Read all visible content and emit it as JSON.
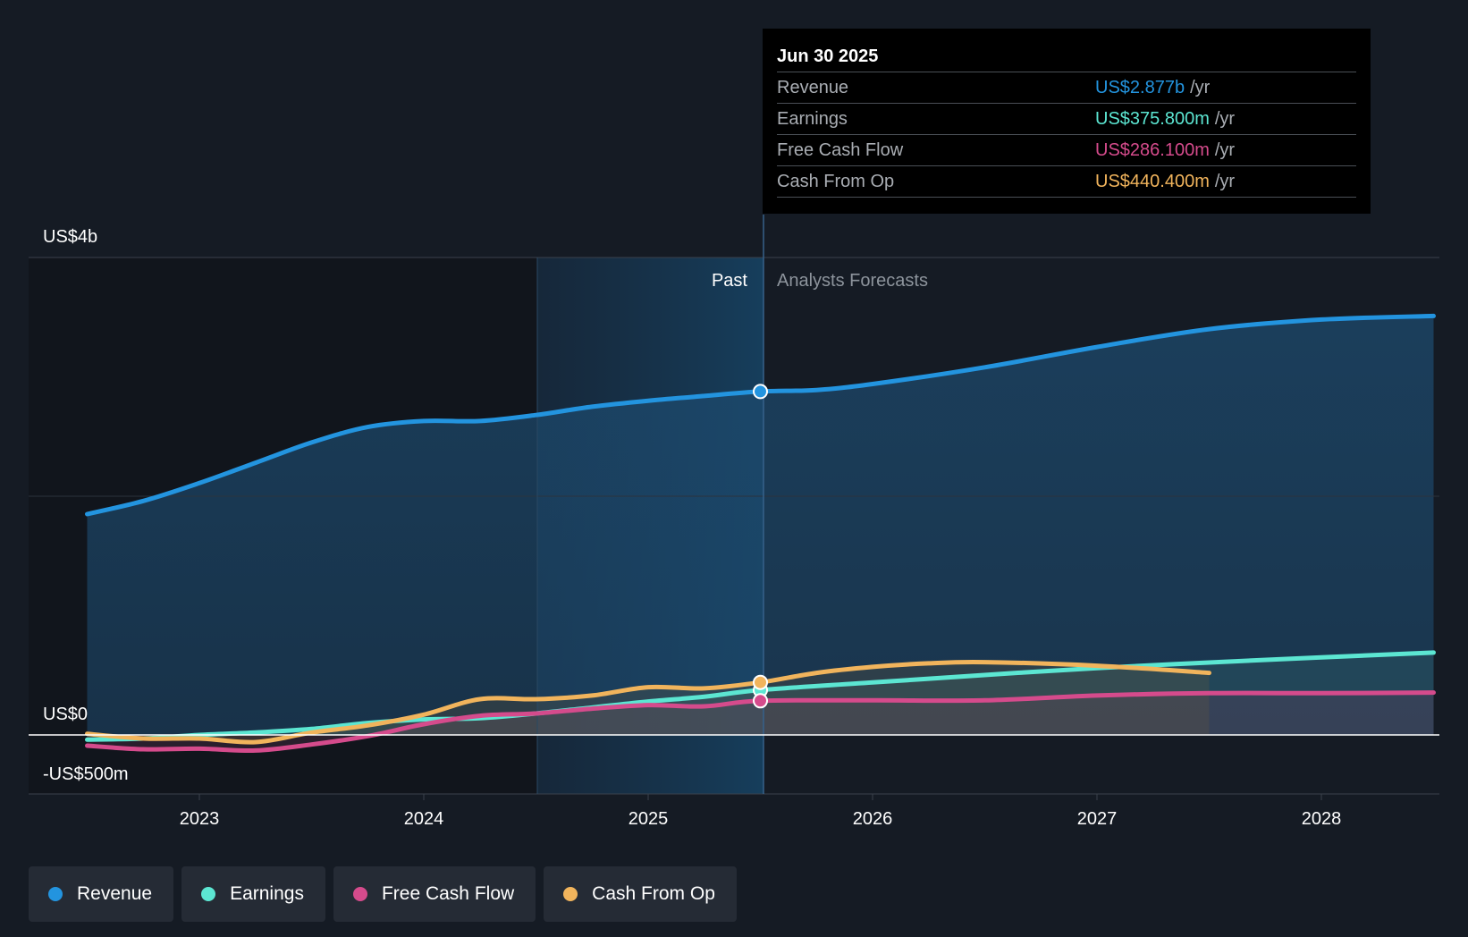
{
  "chart_data": {
    "type": "line",
    "title": "",
    "y_axis": {
      "labels": [
        "US$4b",
        "US$0",
        "-US$500m"
      ],
      "ylim": [
        -500,
        4000
      ],
      "unit": "US$ millions"
    },
    "x_axis": {
      "ticks": [
        "2023",
        "2024",
        "2025",
        "2026",
        "2027",
        "2028"
      ],
      "xlim": [
        2022.5,
        2028.5
      ]
    },
    "sections": {
      "past": "Past",
      "forecast": "Analysts Forecasts",
      "divider_x": 2025.5
    },
    "series": [
      {
        "name": "Revenue",
        "color": "#2394df",
        "x": [
          2022.5,
          2022.75,
          2023.0,
          2023.25,
          2023.5,
          2023.75,
          2024.0,
          2024.25,
          2024.5,
          2024.75,
          2025.0,
          2025.25,
          2025.5,
          2025.75,
          2026.0,
          2026.5,
          2027.0,
          2027.5,
          2028.0,
          2028.5
        ],
        "values": [
          1850,
          1960,
          2110,
          2280,
          2450,
          2580,
          2630,
          2630,
          2680,
          2750,
          2800,
          2840,
          2877,
          2890,
          2940,
          3080,
          3250,
          3400,
          3480,
          3510
        ]
      },
      {
        "name": "Earnings",
        "color": "#5ce6d2",
        "x": [
          2022.5,
          2022.75,
          2023.0,
          2023.25,
          2023.5,
          2023.75,
          2024.0,
          2024.25,
          2024.5,
          2024.75,
          2025.0,
          2025.25,
          2025.5,
          2026.0,
          2027.0,
          2028.0,
          2028.5
        ],
        "values": [
          -40,
          -30,
          0,
          20,
          50,
          100,
          130,
          140,
          180,
          230,
          280,
          320,
          375.8,
          440,
          560,
          650,
          690
        ]
      },
      {
        "name": "Free Cash Flow",
        "color": "#d54b8c",
        "x": [
          2022.5,
          2022.75,
          2023.0,
          2023.25,
          2023.5,
          2023.75,
          2024.0,
          2024.25,
          2024.5,
          2024.75,
          2025.0,
          2025.25,
          2025.5,
          2026.0,
          2026.5,
          2027.0,
          2027.5,
          2028.0,
          2028.5
        ],
        "values": [
          -90,
          -120,
          -115,
          -130,
          -80,
          -10,
          90,
          160,
          180,
          220,
          250,
          240,
          286.1,
          290,
          290,
          330,
          350,
          350,
          355
        ]
      },
      {
        "name": "Cash From Op",
        "color": "#f1b45c",
        "x": [
          2022.5,
          2022.75,
          2023.0,
          2023.25,
          2023.5,
          2023.75,
          2024.0,
          2024.25,
          2024.5,
          2024.75,
          2025.0,
          2025.25,
          2025.5,
          2025.75,
          2026.0,
          2026.25,
          2026.5,
          2027.0,
          2027.5
        ],
        "values": [
          10,
          -30,
          -30,
          -60,
          20,
          80,
          170,
          300,
          300,
          330,
          400,
          390,
          440.4,
          520,
          570,
          600,
          610,
          580,
          520
        ]
      }
    ]
  },
  "tooltip": {
    "date": "Jun 30 2025",
    "rows": [
      {
        "label": "Revenue",
        "value": "US$2.877b",
        "unit": "/yr",
        "color": "#2394df"
      },
      {
        "label": "Earnings",
        "value": "US$375.800m",
        "unit": "/yr",
        "color": "#5ce6d2"
      },
      {
        "label": "Free Cash Flow",
        "value": "US$286.100m",
        "unit": "/yr",
        "color": "#d54b8c"
      },
      {
        "label": "Cash From Op",
        "value": "US$440.400m",
        "unit": "/yr",
        "color": "#f1b45c"
      }
    ]
  },
  "legend": [
    {
      "label": "Revenue",
      "color": "#2394df"
    },
    {
      "label": "Earnings",
      "color": "#5ce6d2"
    },
    {
      "label": "Free Cash Flow",
      "color": "#d54b8c"
    },
    {
      "label": "Cash From Op",
      "color": "#f1b45c"
    }
  ]
}
